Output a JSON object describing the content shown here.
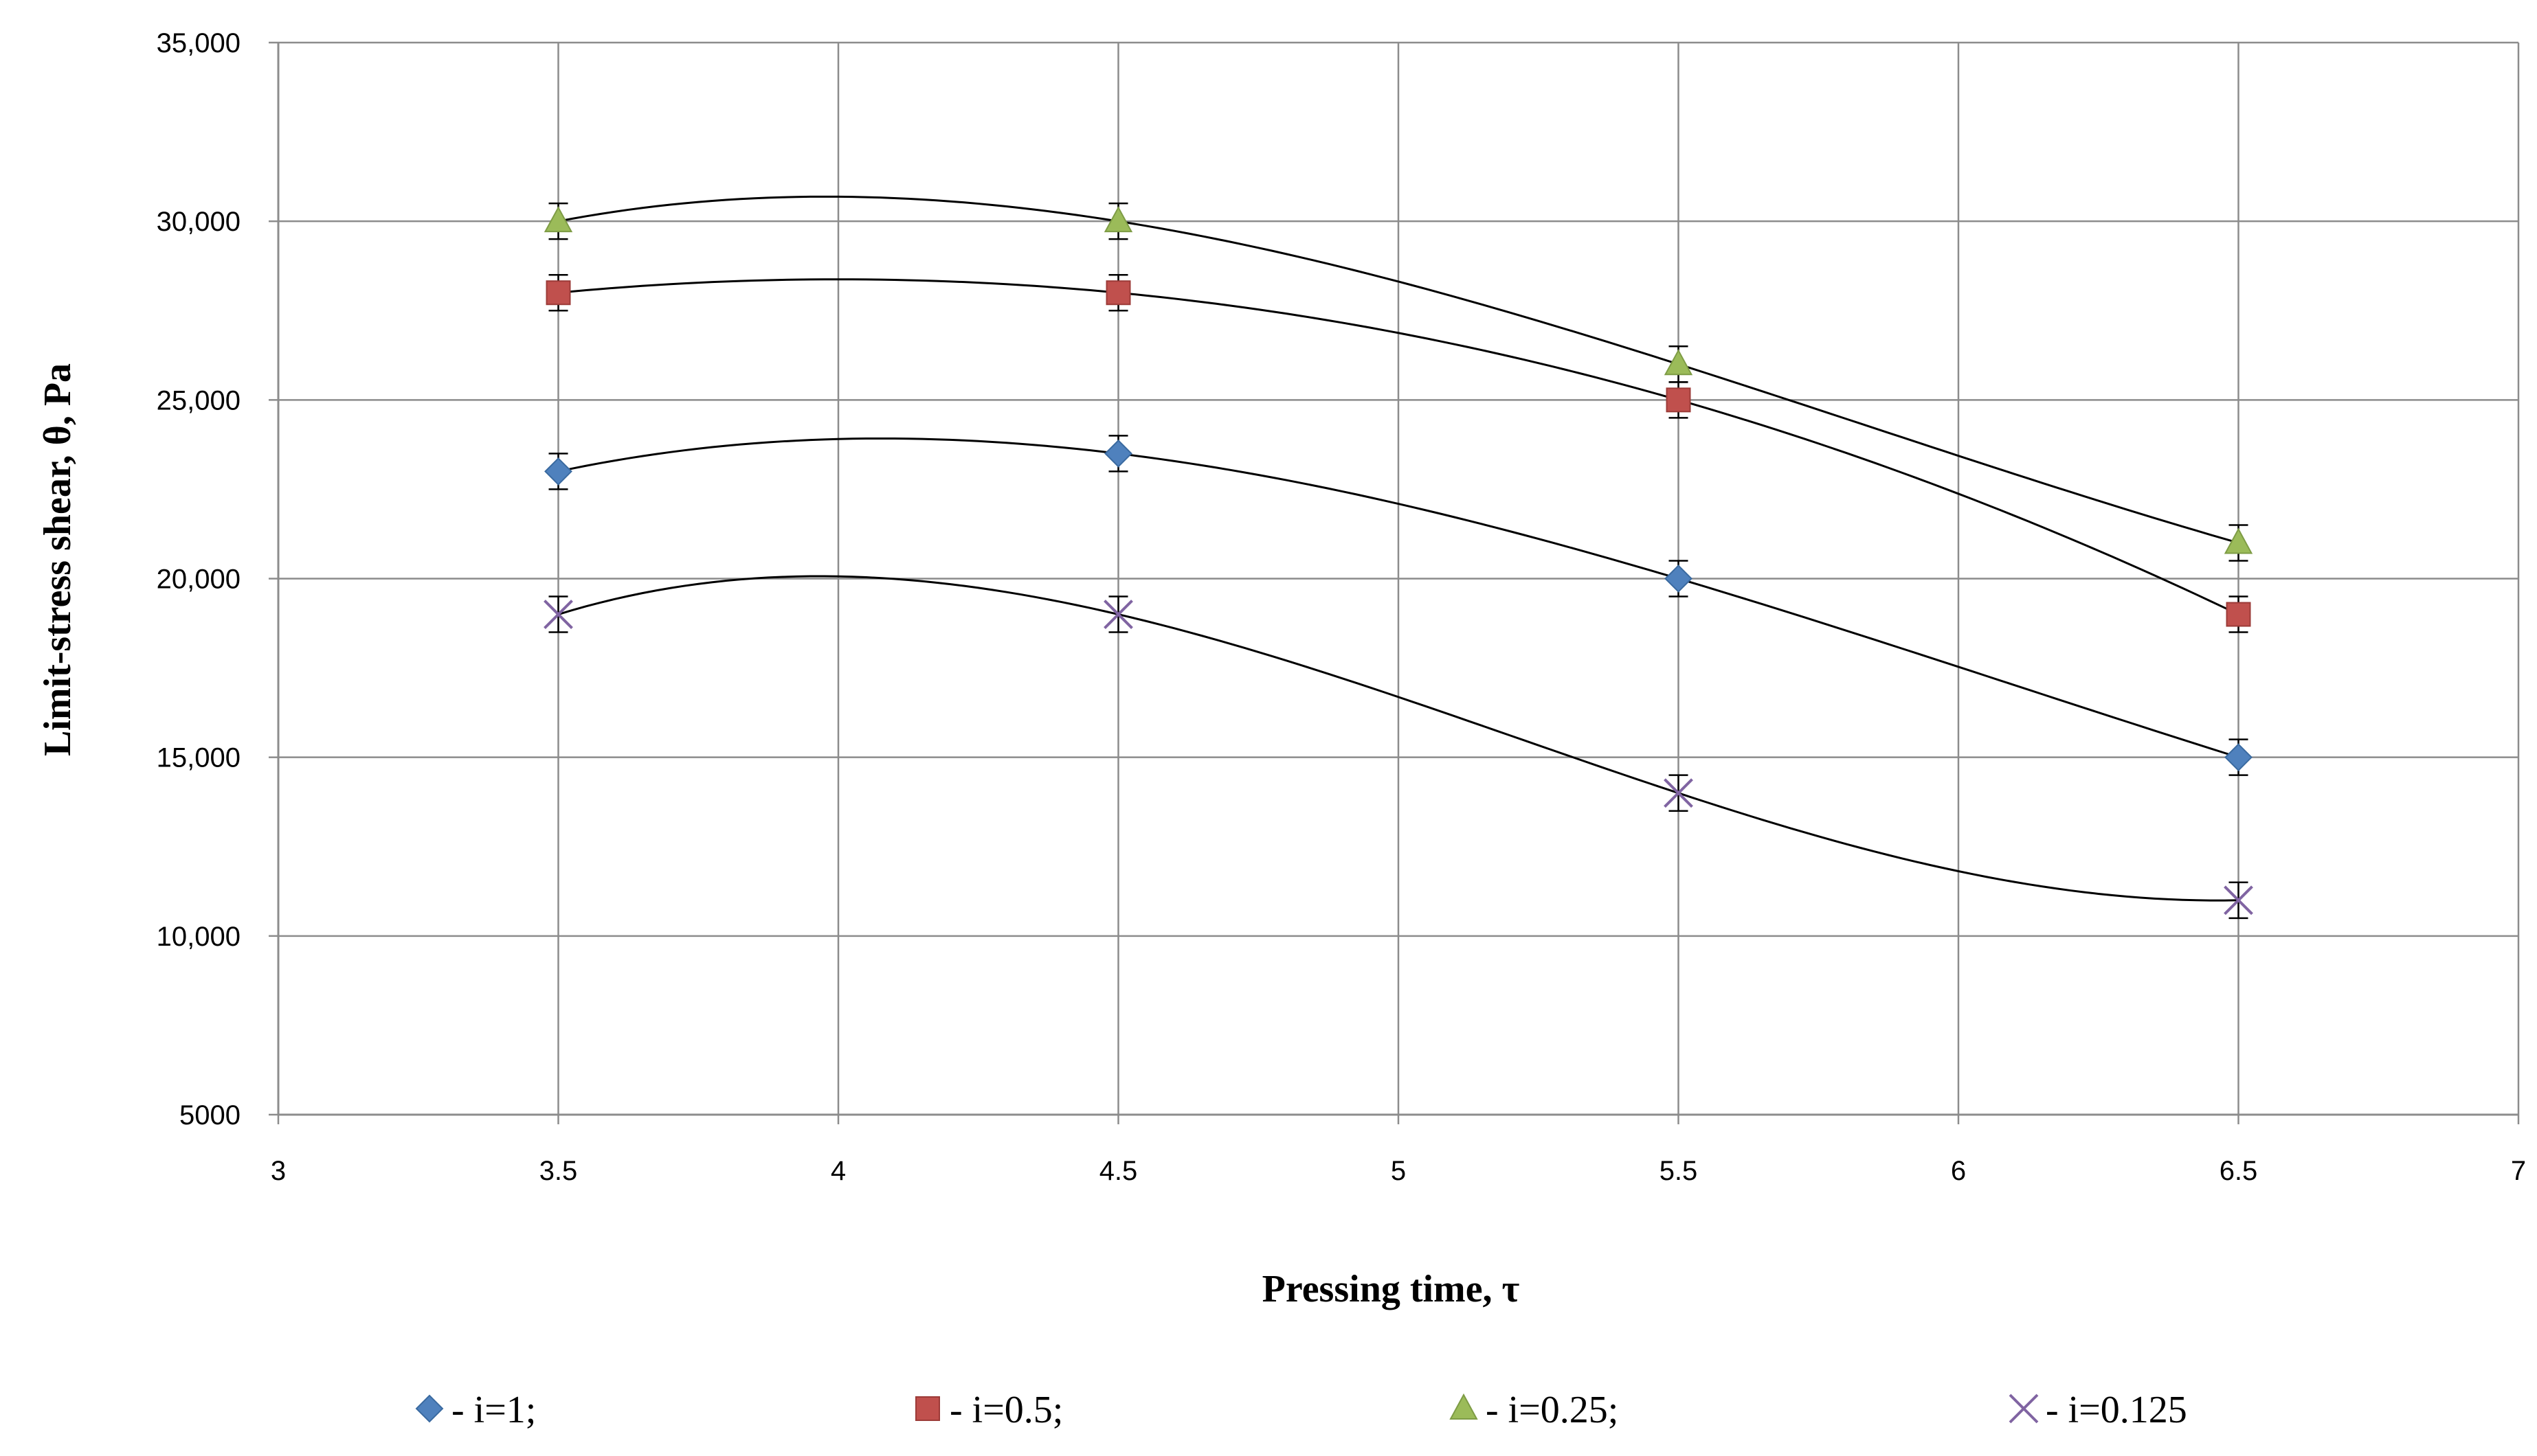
{
  "chart_data": {
    "type": "scatter",
    "xlabel": "Pressing   time, τ",
    "ylabel": "Limit-stress shear, θ, Pa",
    "xlim": [
      3,
      7
    ],
    "ylim": [
      5000,
      35000
    ],
    "x_ticks": [
      "3",
      "3.5",
      "4",
      "4.5",
      "5",
      "5.5",
      "6",
      "6.5",
      "7"
    ],
    "y_ticks": [
      "5000",
      "10,000",
      "15,000",
      "20,000",
      "25,000",
      "30,000",
      "35,000"
    ],
    "grid": true,
    "legend_position": "bottom",
    "error_bar": 500,
    "trendline": "polynomial",
    "series": [
      {
        "name": "- i=1;",
        "marker": "diamond",
        "color": "#4f81bd",
        "x": [
          3.5,
          4.5,
          5.5,
          6.5
        ],
        "y": [
          23000,
          23500,
          20000,
          15000
        ]
      },
      {
        "name": "- i=0.5;",
        "marker": "square",
        "color": "#c0504d",
        "x": [
          3.5,
          4.5,
          5.5,
          6.5
        ],
        "y": [
          28000,
          28000,
          25000,
          19000
        ]
      },
      {
        "name": "- i=0.25;",
        "marker": "triangle",
        "color": "#9bbb59",
        "x": [
          3.5,
          4.5,
          5.5,
          6.5
        ],
        "y": [
          30000,
          30000,
          26000,
          21000
        ]
      },
      {
        "name": "- i=0.125",
        "marker": "cross",
        "color": "#8064a2",
        "x": [
          3.5,
          4.5,
          5.5,
          6.5
        ],
        "y": [
          19000,
          19000,
          14000,
          11000
        ]
      }
    ]
  }
}
